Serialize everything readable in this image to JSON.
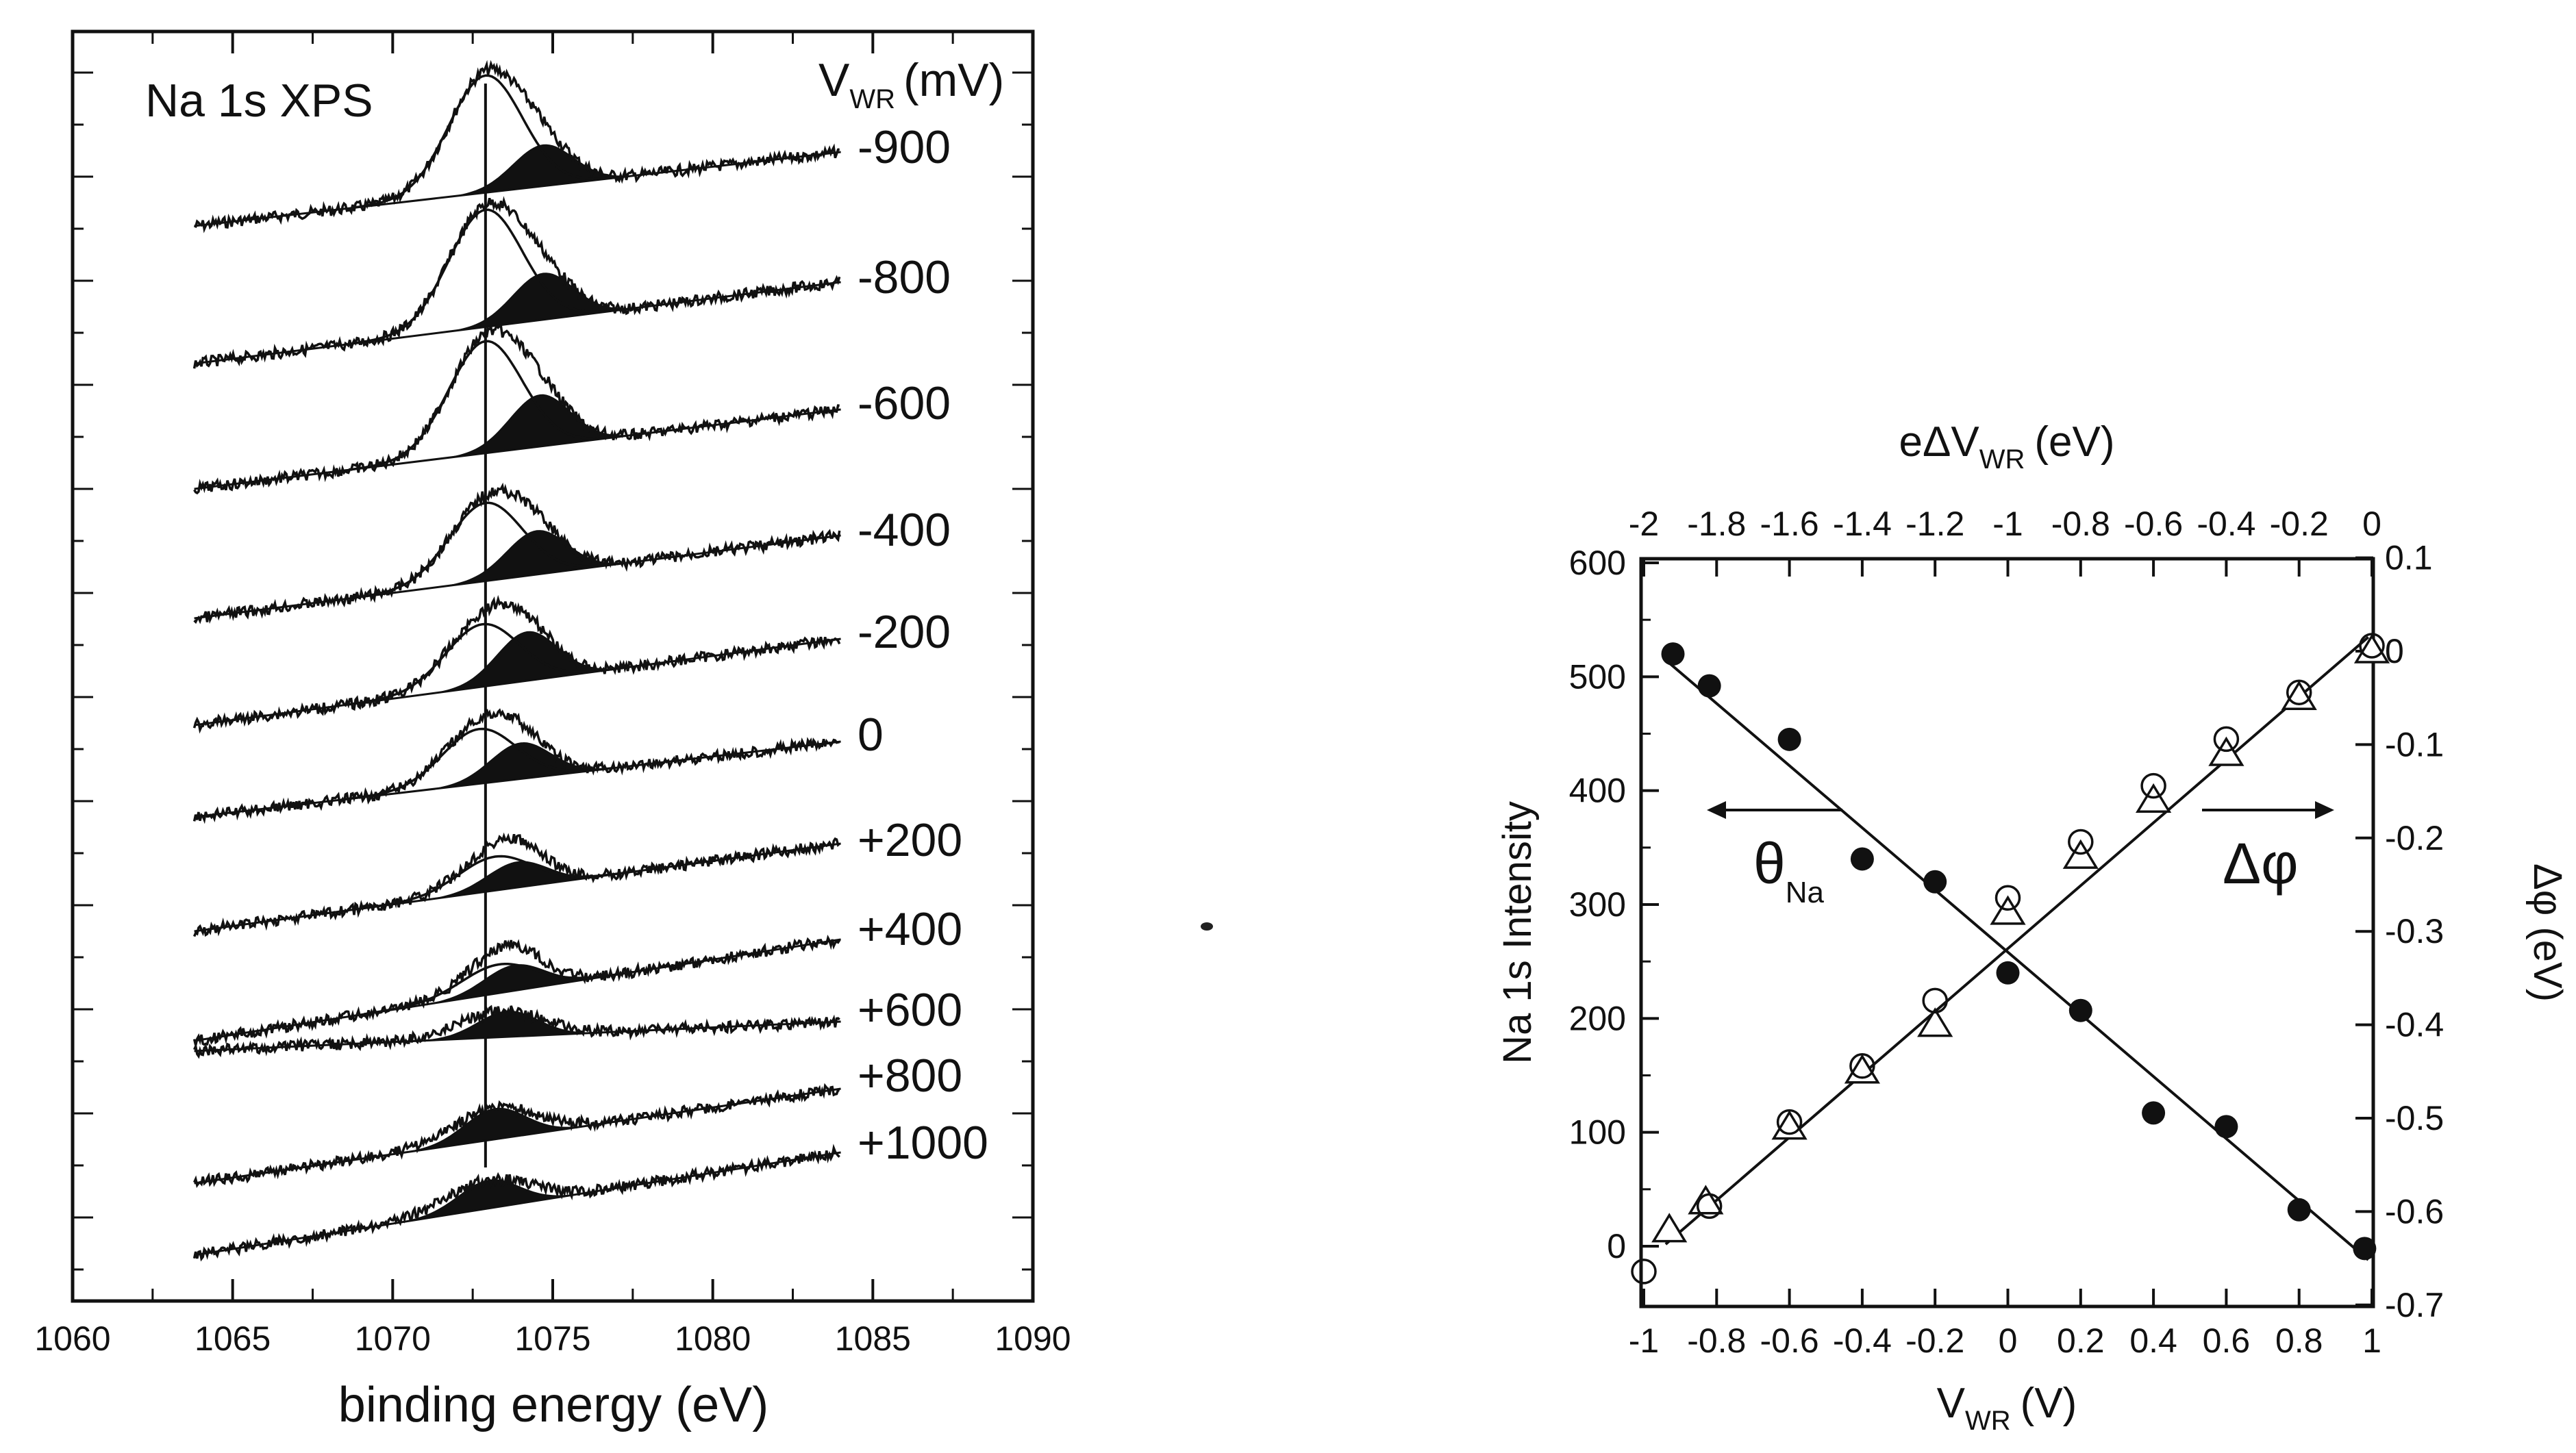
{
  "chart_data": [
    {
      "type": "line",
      "title": "Na 1s XPS",
      "xlabel": "binding energy (eV)",
      "ylabel": "",
      "xlim": [
        1060,
        1090
      ],
      "xticks": [
        "1060",
        "1065",
        "1070",
        "1075",
        "1080",
        "1085",
        "1090"
      ],
      "legend_title": "V",
      "legend_title_sub": "WR",
      "legend_title_unit": "(mV)",
      "reference_line_energy": 1072.9,
      "series": [
        {
          "name": "-900",
          "main_peak": 1072.9,
          "main_height": 4.5,
          "shifted_peak": 1074.7,
          "shifted_height": 1.6
        },
        {
          "name": "-800",
          "main_peak": 1072.9,
          "main_height": 4.5,
          "shifted_peak": 1074.7,
          "shifted_height": 1.8
        },
        {
          "name": "-600",
          "main_peak": 1072.9,
          "main_height": 4.3,
          "shifted_peak": 1074.6,
          "shifted_height": 2.0
        },
        {
          "name": "-400",
          "main_peak": 1072.9,
          "main_height": 3.0,
          "shifted_peak": 1074.5,
          "shifted_height": 1.7
        },
        {
          "name": "-200",
          "main_peak": 1072.8,
          "main_height": 2.4,
          "shifted_peak": 1074.2,
          "shifted_height": 1.9
        },
        {
          "name": "0",
          "main_peak": 1072.7,
          "main_height": 2.1,
          "shifted_peak": 1074.0,
          "shifted_height": 1.4
        },
        {
          "name": "+200",
          "main_peak": 1073.2,
          "main_height": 1.3,
          "shifted_peak": 1073.9,
          "shifted_height": 1.0
        },
        {
          "name": "+400",
          "main_peak": 1073.3,
          "main_height": 1.1,
          "shifted_peak": 1073.8,
          "shifted_height": 1.0
        },
        {
          "name": "+600",
          "main_peak": 1073.4,
          "main_height": 1.0,
          "shifted_peak": 1073.6,
          "shifted_height": 1.0
        },
        {
          "name": "+800",
          "main_peak": 1073.2,
          "main_height": 1.2,
          "shifted_peak": 1073.2,
          "shifted_height": 1.2
        },
        {
          "name": "+1000",
          "main_peak": 1073.0,
          "main_height": 1.1,
          "shifted_peak": 1073.0,
          "shifted_height": 1.1
        }
      ]
    },
    {
      "type": "scatter",
      "title": "",
      "xlabel": "V",
      "xlabel_sub": "WR",
      "xlabel_unit": "(V)",
      "ylabel": "Na 1s Intensity",
      "y2label": "Δφ (eV)",
      "x2label": "eΔV",
      "x2label_sub": "WR",
      "x2label_unit": "(eV)",
      "xlim": [
        -1,
        1
      ],
      "ylim": [
        -50,
        600
      ],
      "y2lim": [
        -0.7,
        0.1
      ],
      "x2lim": [
        -2,
        0
      ],
      "xticks": [
        "-1",
        "-0.8",
        "-0.6",
        "-0.4",
        "-0.2",
        "0",
        "0.2",
        "0.4",
        "0.6",
        "0.8",
        "1"
      ],
      "yticks": [
        "0",
        "100",
        "200",
        "300",
        "400",
        "500",
        "600"
      ],
      "y2ticks": [
        "0.1",
        "0",
        "-0.1",
        "-0.2",
        "-0.3",
        "-0.4",
        "-0.5",
        "-0.6",
        "-0.7"
      ],
      "x2ticks": [
        "-2",
        "-1.8",
        "-1.6",
        "-1.4",
        "-1.2",
        "-1",
        "-0.8",
        "-0.6",
        "-0.4",
        "-0.2",
        "0"
      ],
      "annotations": {
        "theta": "θ",
        "theta_sub": "Na",
        "dphi": "Δφ"
      },
      "series": [
        {
          "name": "θNa (Na 1s intensity, filled circles)",
          "axis": "left",
          "x": [
            -0.92,
            -0.82,
            -0.6,
            -0.4,
            -0.2,
            0.0,
            0.2,
            0.4,
            0.6,
            0.8,
            0.98
          ],
          "y": [
            520,
            492,
            445,
            340,
            320,
            240,
            207,
            117,
            105,
            32,
            -2
          ]
        },
        {
          "name": "Na 1s intensity fit",
          "axis": "left",
          "x": [
            -0.93,
            0.99
          ],
          "y": [
            512,
            -12
          ]
        },
        {
          "name": "Δφ (open circles)",
          "axis": "right",
          "x": [
            -1.0,
            -0.82,
            -0.6,
            -0.4,
            -0.2,
            0.0,
            0.2,
            0.4,
            0.6,
            0.8,
            1.0
          ],
          "y": [
            -0.67,
            -0.6,
            -0.51,
            -0.45,
            -0.38,
            -0.27,
            -0.21,
            -0.15,
            -0.1,
            -0.05,
            0.0
          ]
        },
        {
          "name": "Δφ (open triangles)",
          "axis": "right",
          "x": [
            -0.93,
            -0.83,
            -0.6,
            -0.4,
            -0.2,
            0.0,
            0.2,
            0.4,
            0.6,
            0.8,
            1.0
          ],
          "y": [
            -0.62,
            -0.59,
            -0.51,
            -0.45,
            -0.4,
            -0.28,
            -0.22,
            -0.16,
            -0.11,
            -0.05,
            0.0
          ]
        },
        {
          "name": "Δφ fit",
          "axis": "right",
          "x": [
            -0.94,
            0.99
          ],
          "y": [
            -0.635,
            0.015
          ]
        }
      ]
    }
  ]
}
